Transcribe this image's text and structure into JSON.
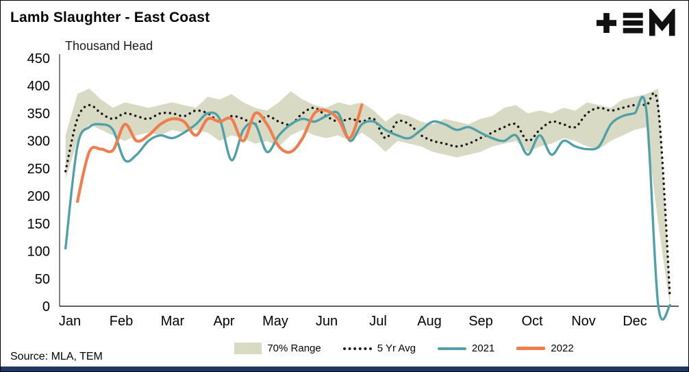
{
  "header": {
    "title": "Lamb Slaughter - East Coast",
    "brand": "TEM"
  },
  "footer": {
    "source": "Source: MLA, TEM"
  },
  "colors": {
    "bottom_bar": "#1f3864",
    "axis": "#000000"
  },
  "chart_data": {
    "type": "line",
    "title": "Lamb Slaughter - East Coast",
    "ylabel": "Thousand Head",
    "xlabel": "",
    "ylim": [
      0,
      450
    ],
    "yticks": [
      450,
      400,
      350,
      300,
      250,
      200,
      150,
      100,
      50,
      0
    ],
    "months": [
      "Jan",
      "Feb",
      "Mar",
      "Apr",
      "May",
      "Jun",
      "Jul",
      "Aug",
      "Sep",
      "Oct",
      "Nov",
      "Dec"
    ],
    "weeks": 52,
    "x_unit": "week of year",
    "grid": false,
    "legend_position": "bottom",
    "series": [
      {
        "name": "70% Range",
        "type": "band",
        "color": "#d9dac4",
        "upper": [
          310,
          385,
          395,
          375,
          360,
          370,
          365,
          360,
          365,
          370,
          365,
          360,
          380,
          375,
          385,
          370,
          360,
          355,
          370,
          390,
          375,
          365,
          360,
          370,
          365,
          370,
          355,
          335,
          350,
          345,
          335,
          330,
          340,
          335,
          330,
          340,
          345,
          360,
          365,
          350,
          355,
          350,
          360,
          355,
          370,
          365,
          360,
          375,
          380,
          385,
          395,
          25
        ],
        "lower": [
          230,
          300,
          330,
          320,
          310,
          300,
          310,
          315,
          310,
          320,
          315,
          320,
          315,
          300,
          310,
          305,
          295,
          300,
          290,
          310,
          320,
          310,
          305,
          310,
          300,
          315,
          300,
          280,
          300,
          295,
          290,
          280,
          275,
          270,
          275,
          280,
          290,
          295,
          300,
          280,
          290,
          295,
          305,
          300,
          290,
          285,
          300,
          310,
          320,
          325,
          150,
          0
        ]
      },
      {
        "name": "5 Yr Avg",
        "type": "dotted",
        "color": "#1a1a1a",
        "values": [
          245,
          340,
          365,
          350,
          340,
          350,
          345,
          340,
          350,
          350,
          345,
          355,
          350,
          335,
          345,
          340,
          330,
          345,
          335,
          330,
          350,
          360,
          345,
          335,
          340,
          335,
          340,
          305,
          335,
          330,
          310,
          300,
          295,
          290,
          295,
          305,
          315,
          325,
          330,
          300,
          320,
          335,
          330,
          325,
          350,
          360,
          355,
          360,
          365,
          365,
          360,
          15
        ]
      },
      {
        "name": "2021",
        "type": "line",
        "color": "#4fa0a8",
        "values": [
          105,
          290,
          325,
          330,
          320,
          265,
          275,
          300,
          310,
          305,
          315,
          330,
          350,
          340,
          265,
          320,
          330,
          280,
          310,
          330,
          340,
          335,
          345,
          350,
          300,
          330,
          335,
          320,
          310,
          305,
          320,
          335,
          330,
          320,
          325,
          315,
          305,
          300,
          310,
          275,
          310,
          275,
          300,
          290,
          285,
          290,
          330,
          345,
          350,
          355,
          2,
          2
        ]
      },
      {
        "name": "2022",
        "type": "line",
        "color": "#f07d4e",
        "values": [
          null,
          190,
          280,
          285,
          283,
          330,
          300,
          310,
          330,
          340,
          335,
          310,
          340,
          335,
          340,
          300,
          350,
          330,
          290,
          280,
          305,
          350,
          355,
          340,
          305,
          365
        ]
      }
    ]
  }
}
